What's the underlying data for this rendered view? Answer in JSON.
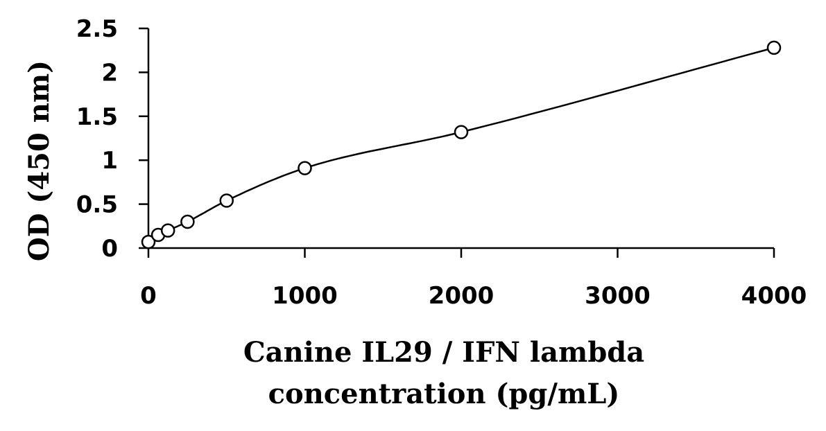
{
  "chart_data": {
    "type": "scatter",
    "x": [
      0,
      62.5,
      125,
      250,
      500,
      1000,
      2000,
      4000
    ],
    "y": [
      0.07,
      0.15,
      0.2,
      0.3,
      0.54,
      0.91,
      1.32,
      2.28
    ],
    "fit": "smooth curve through points",
    "xlim": [
      0,
      4000
    ],
    "ylim": [
      0,
      2.5
    ],
    "xticks": [
      0,
      1000,
      2000,
      3000,
      4000
    ],
    "yticks": [
      0,
      0.5,
      1,
      1.5,
      2,
      2.5
    ],
    "xticklabels": [
      "0",
      "1000",
      "2000",
      "3000",
      "4000"
    ],
    "yticklabels": [
      "0",
      "0.5",
      "1",
      "1.5",
      "2",
      "2.5"
    ],
    "xlabel_line1": "Canine IL29 / IFN lambda",
    "xlabel_line2": "concentration (pg/mL)",
    "ylabel": "OD (450 nm)",
    "grid": false,
    "marker": "open-circle",
    "colors": {
      "line": "#000000",
      "marker_fill": "#ffffff"
    }
  }
}
